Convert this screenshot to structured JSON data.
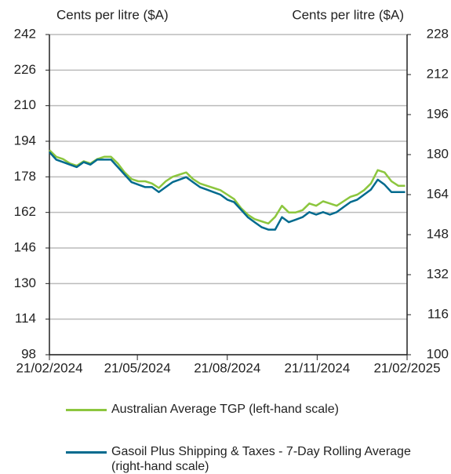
{
  "chart_data": {
    "type": "line",
    "y_label": "Cents per litre ($A)",
    "y2_label": "Cents per litre ($A)",
    "x": [
      "2024-02-21",
      "2024-02-28",
      "2024-03-06",
      "2024-03-13",
      "2024-03-20",
      "2024-03-27",
      "2024-04-03",
      "2024-04-10",
      "2024-04-17",
      "2024-04-24",
      "2024-05-01",
      "2024-05-08",
      "2024-05-15",
      "2024-05-22",
      "2024-05-29",
      "2024-06-05",
      "2024-06-12",
      "2024-06-19",
      "2024-06-26",
      "2024-07-03",
      "2024-07-10",
      "2024-07-17",
      "2024-07-24",
      "2024-07-31",
      "2024-08-07",
      "2024-08-14",
      "2024-08-21",
      "2024-08-28",
      "2024-09-04",
      "2024-09-11",
      "2024-09-18",
      "2024-09-25",
      "2024-10-02",
      "2024-10-09",
      "2024-10-16",
      "2024-10-23",
      "2024-10-30",
      "2024-11-06",
      "2024-11-13",
      "2024-11-20",
      "2024-11-27",
      "2024-12-04",
      "2024-12-11",
      "2024-12-18",
      "2024-12-25",
      "2025-01-01",
      "2025-01-08",
      "2025-01-15",
      "2025-01-22",
      "2025-01-29",
      "2025-02-05",
      "2025-02-12",
      "2025-02-19"
    ],
    "xlim": [
      "2024-02-21",
      "2025-02-21"
    ],
    "xticks": [
      {
        "value": "2024-02-21",
        "label": "21/02/2024"
      },
      {
        "value": "2024-05-21",
        "label": "21/05/2024"
      },
      {
        "value": "2024-08-21",
        "label": "21/08/2024"
      },
      {
        "value": "2024-11-21",
        "label": "21/11/2024"
      },
      {
        "value": "2025-02-21",
        "label": "21/02/2025"
      }
    ],
    "ylim": [
      98,
      242
    ],
    "yticks": [
      98,
      114,
      130,
      146,
      162,
      178,
      194,
      210,
      226,
      242
    ],
    "y2lim": [
      100,
      228
    ],
    "y2ticks": [
      100,
      116,
      132,
      148,
      164,
      180,
      196,
      212,
      228
    ],
    "grid": true,
    "series": [
      {
        "name": "Australian Average TGP (left-hand scale)",
        "color": "#8cc63e",
        "values": [
          190,
          187,
          186,
          184,
          183,
          185,
          184,
          186,
          187,
          187,
          184,
          180,
          177,
          176,
          176,
          175,
          173,
          176,
          178,
          179,
          180,
          177,
          175,
          174,
          173,
          172,
          170,
          168,
          164,
          161,
          159,
          158,
          157,
          160,
          165,
          162,
          162,
          163,
          166,
          165,
          167,
          166,
          165,
          167,
          169,
          170,
          172,
          175,
          181,
          180,
          176,
          174,
          174
        ]
      },
      {
        "name": "Gasoil Plus Shipping & Taxes - 7-Day Rolling Average (right-hand scale)",
        "color": "#006a8e",
        "axis": "y2",
        "values": [
          181,
          178,
          177,
          176,
          175,
          177,
          176,
          178,
          178,
          178,
          175,
          172,
          169,
          168,
          167,
          167,
          165,
          167,
          169,
          170,
          171,
          169,
          167,
          166,
          165,
          164,
          162,
          161,
          158,
          155,
          153,
          151,
          150,
          150,
          155,
          153,
          154,
          155,
          157,
          156,
          157,
          156,
          157,
          159,
          161,
          162,
          164,
          166,
          170,
          168,
          165,
          165,
          165
        ]
      }
    ]
  }
}
